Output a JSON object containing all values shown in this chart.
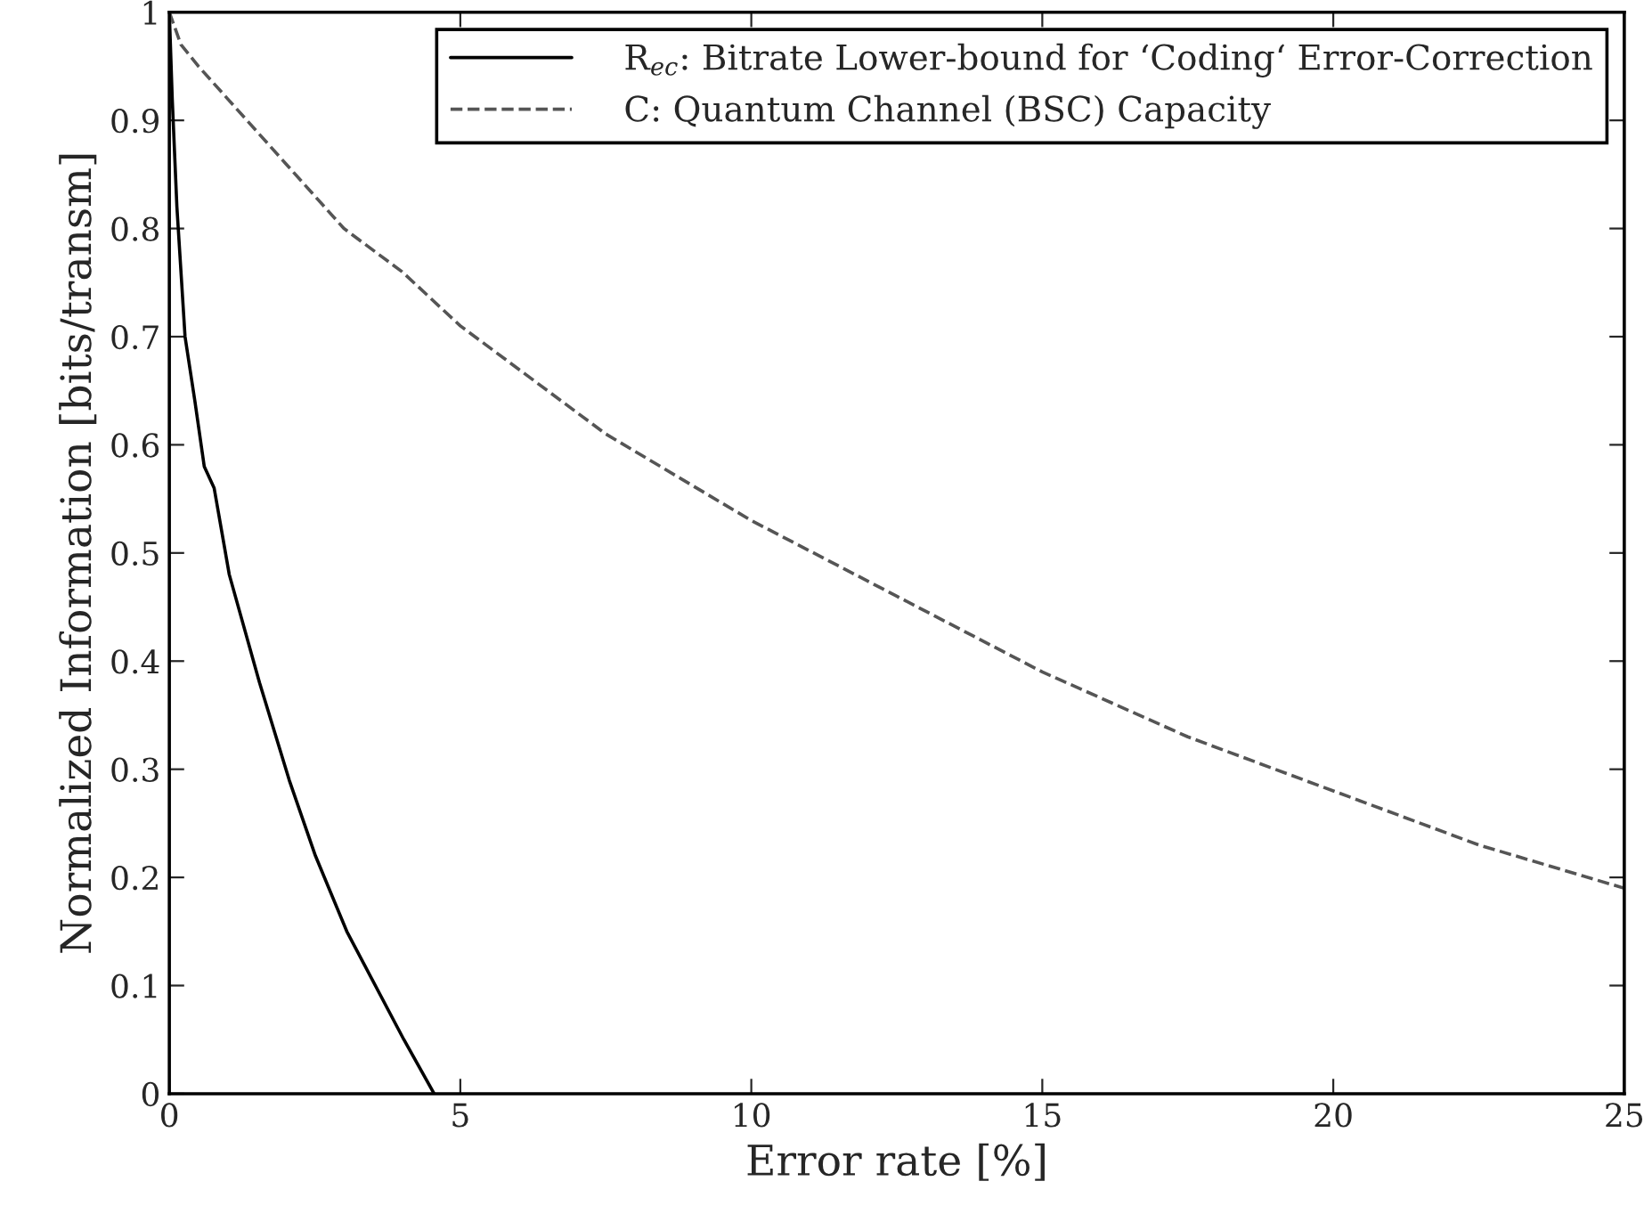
{
  "chart_data": {
    "type": "line",
    "xlabel": "Error rate [%]",
    "ylabel": "Normalized Information [bits/transm]",
    "xlim": [
      0,
      25
    ],
    "xticks": [
      0,
      5,
      10,
      15,
      20,
      25
    ],
    "ylim": [
      0,
      1
    ],
    "yticks": [
      0,
      0.1,
      0.2,
      0.3,
      0.4,
      0.5,
      0.6,
      0.7,
      0.8,
      0.9,
      1
    ],
    "grid": false,
    "legend": "top right",
    "marker": "none",
    "series": [
      {
        "name": "R$_{ec}$: Bitrate Lower-bound for ‘Coding‘ Error-Correction",
        "color": "#000000",
        "line_style": "solid",
        "x": [
          0,
          0.05,
          0.13,
          0.27,
          0.44,
          0.6,
          0.77,
          1.03,
          1.55,
          2.06,
          2.51,
          3.05,
          4.03,
          4.55
        ],
        "values": [
          1,
          0.92,
          0.82,
          0.7,
          0.64,
          0.58,
          0.56,
          0.48,
          0.38,
          0.29,
          0.22,
          0.15,
          0.05,
          0
        ]
      },
      {
        "name": "C: Quantum Channel (BSC) Capacity",
        "color": "#555555",
        "line_style": "dashed",
        "x": [
          0,
          0.2,
          0.5,
          1,
          2,
          3,
          4,
          5,
          7.5,
          10,
          12.5,
          15,
          17.5,
          20,
          22.5,
          25
        ],
        "values": [
          1,
          0.97,
          0.95,
          0.92,
          0.86,
          0.8,
          0.76,
          0.71,
          0.61,
          0.53,
          0.46,
          0.39,
          0.33,
          0.28,
          0.23,
          0.19
        ]
      }
    ]
  }
}
